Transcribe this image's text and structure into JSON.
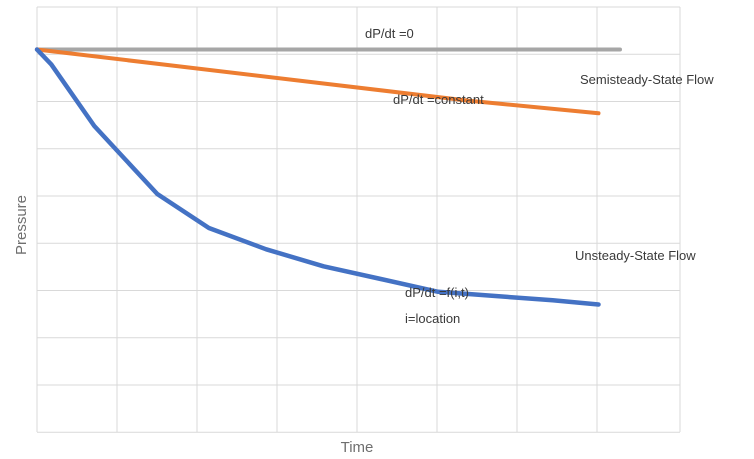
{
  "chart_data": {
    "type": "line",
    "title": "",
    "xlabel": "Time",
    "ylabel": "Pressure",
    "xlim": [
      0,
      10
    ],
    "ylim": [
      0,
      10
    ],
    "grid": true,
    "legend": "none",
    "series": [
      {
        "name": "",
        "color": "#a6a6a6",
        "x": [
          0,
          10
        ],
        "y": [
          9.0,
          9.0
        ]
      },
      {
        "name": "Semisteady-State Flow",
        "color": "#ed7d31",
        "x": [
          0,
          2.5,
          5,
          7.5,
          9.8
        ],
        "y": [
          9.0,
          8.6,
          8.2,
          7.8,
          7.5
        ]
      },
      {
        "name": "Unsteady-State Flow",
        "color": "#4472c4",
        "x": [
          0,
          0.25,
          1,
          2.1,
          3,
          4,
          5,
          6,
          7,
          8,
          9,
          9.8
        ],
        "y": [
          9.0,
          8.65,
          7.2,
          5.6,
          4.8,
          4.3,
          3.9,
          3.6,
          3.3,
          3.2,
          3.1,
          3.0
        ]
      }
    ],
    "annotations": {
      "zero": "dP/dt =0",
      "constant": "dP/dt =constant",
      "function": "dP/dt =f(i,t)",
      "location": "i=location"
    }
  }
}
